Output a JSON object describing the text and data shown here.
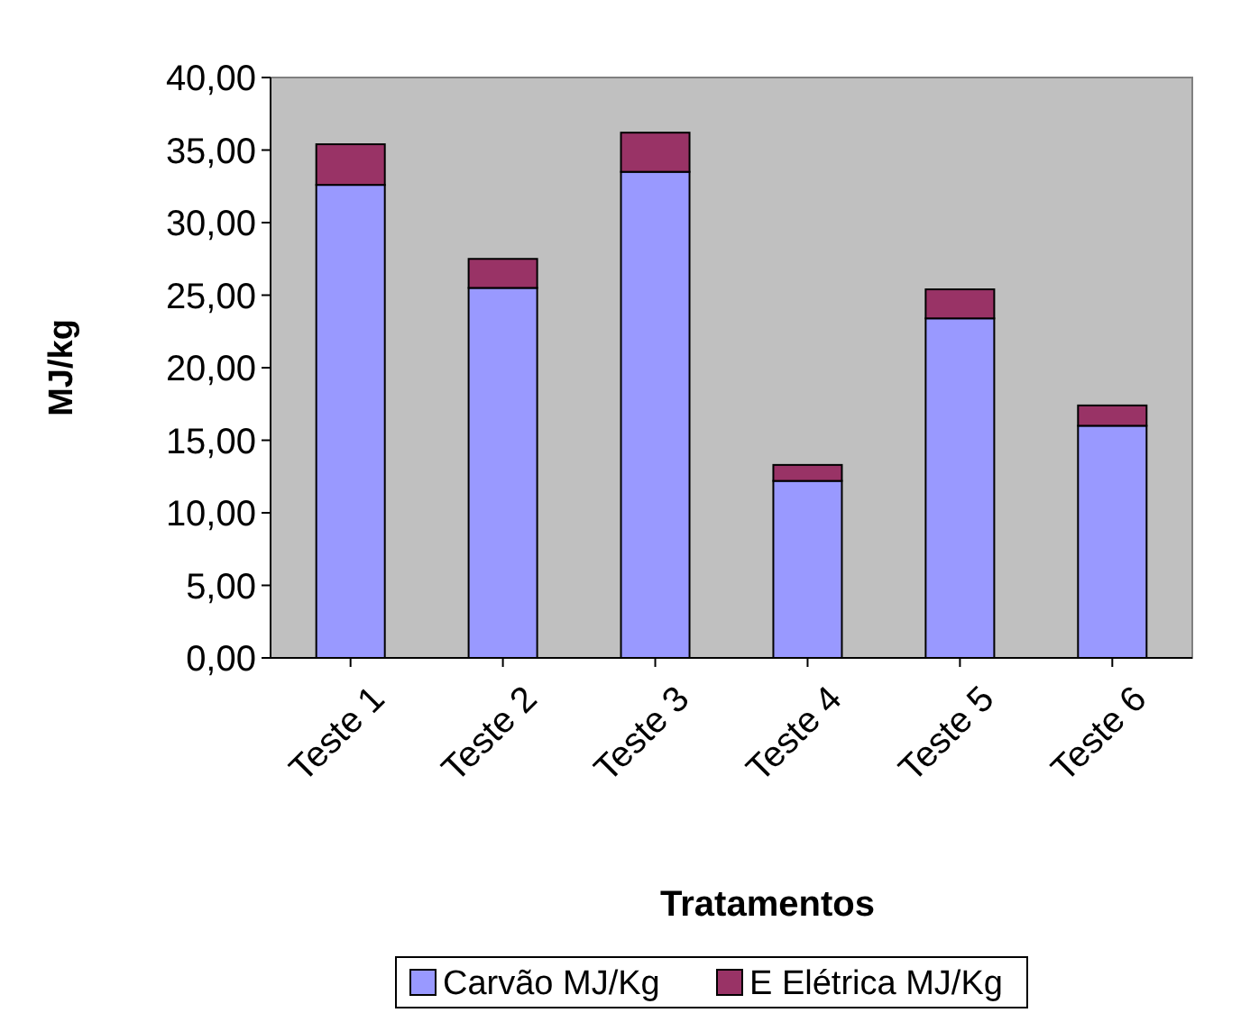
{
  "chart_data": {
    "type": "bar",
    "stacked": true,
    "xlabel": "Tratamentos",
    "ylabel": "MJ/kg",
    "categories": [
      "Teste 1",
      "Teste 2",
      "Teste 3",
      "Teste 4",
      "Teste 5",
      "Teste 6"
    ],
    "series": [
      {
        "name": "Carvão MJ/Kg",
        "color": "#9999ff",
        "values": [
          32.6,
          25.5,
          33.5,
          12.2,
          23.4,
          16.0
        ]
      },
      {
        "name": "E Elétrica MJ/Kg",
        "color": "#993366",
        "values": [
          2.8,
          2.0,
          2.7,
          1.1,
          2.0,
          1.4
        ]
      }
    ],
    "ylim": [
      0,
      40
    ],
    "yticks": [
      {
        "value": 0,
        "label": "0,00"
      },
      {
        "value": 5,
        "label": "5,00"
      },
      {
        "value": 10,
        "label": "10,00"
      },
      {
        "value": 15,
        "label": "15,00"
      },
      {
        "value": 20,
        "label": "20,00"
      },
      {
        "value": 25,
        "label": "25,00"
      },
      {
        "value": 30,
        "label": "30,00"
      },
      {
        "value": 35,
        "label": "35,00"
      },
      {
        "value": 40,
        "label": "40,00"
      }
    ],
    "grid": false,
    "legend": "bottom"
  }
}
